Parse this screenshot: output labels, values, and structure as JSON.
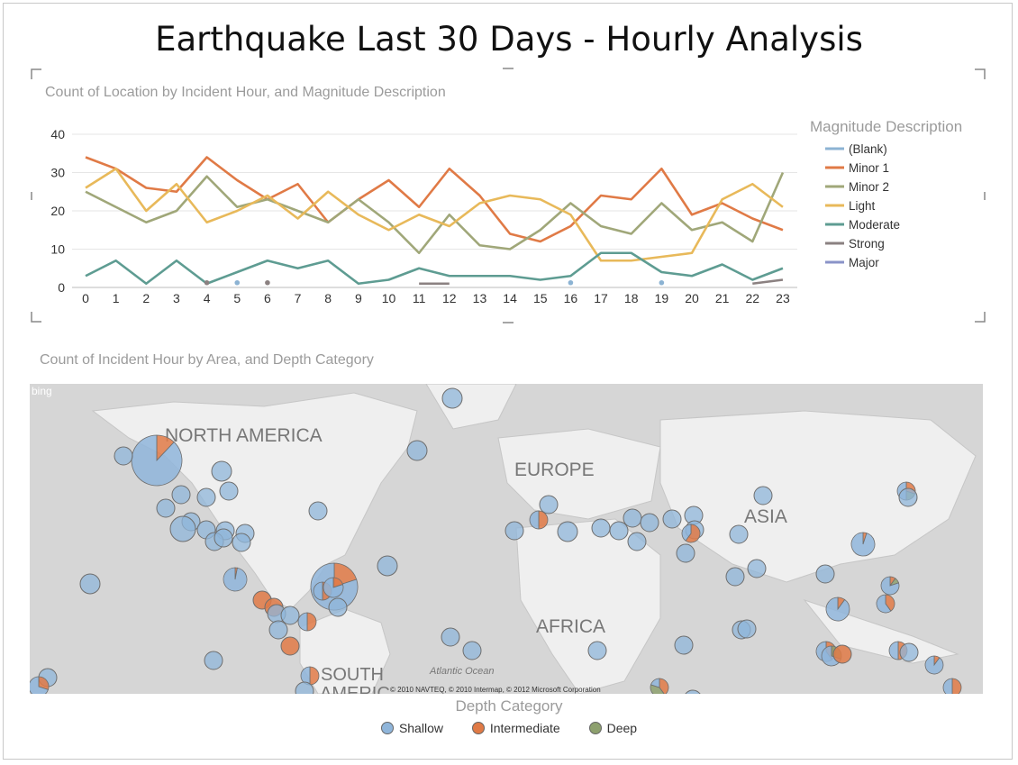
{
  "page": {
    "title": "Earthquake Last 30 Days - Hourly Analysis"
  },
  "colors": {
    "blank": "#8cb3d3",
    "minor1": "#e07a46",
    "minor2": "#a0a779",
    "light": "#e8b95a",
    "moderate": "#5e9c92",
    "strong": "#8b8181",
    "major": "#8a93c8",
    "shallow": "#8fb5da",
    "intermediate": "#e07a46",
    "deep": "#8da06e"
  },
  "chart_data": [
    {
      "type": "line",
      "title": "Count of Location by Incident Hour, and Magnitude Description",
      "xlabel": "",
      "ylabel": "",
      "x": [
        0,
        1,
        2,
        3,
        4,
        5,
        6,
        7,
        8,
        9,
        10,
        11,
        12,
        13,
        14,
        15,
        16,
        17,
        18,
        19,
        20,
        21,
        22,
        23
      ],
      "ylim": [
        0,
        40
      ],
      "yticks": [
        0,
        10,
        20,
        30,
        40
      ],
      "legend_title": "Magnitude Description",
      "legend_position": "right",
      "series": [
        {
          "name": "(Blank)",
          "color_key": "blank",
          "points": [
            [
              5,
              1
            ],
            [
              16,
              1
            ],
            [
              19,
              1
            ]
          ]
        },
        {
          "name": "Minor 1",
          "color_key": "minor1",
          "values": [
            34,
            31,
            26,
            25,
            34,
            28,
            23,
            27,
            17,
            23,
            28,
            21,
            31,
            24,
            14,
            12,
            16,
            24,
            23,
            31,
            19,
            22,
            18,
            15
          ]
        },
        {
          "name": "Minor 2",
          "color_key": "minor2",
          "values": [
            25,
            21,
            17,
            20,
            29,
            21,
            23,
            20,
            17,
            23,
            17,
            9,
            19,
            11,
            10,
            15,
            22,
            16,
            14,
            22,
            15,
            17,
            12,
            30
          ]
        },
        {
          "name": "Light",
          "color_key": "light",
          "values": [
            26,
            31,
            20,
            27,
            17,
            20,
            24,
            18,
            25,
            19,
            15,
            19,
            16,
            22,
            24,
            23,
            19,
            7,
            7,
            8,
            9,
            23,
            27,
            21
          ]
        },
        {
          "name": "Moderate",
          "color_key": "moderate",
          "values": [
            3,
            7,
            1,
            7,
            1,
            4,
            7,
            5,
            7,
            1,
            2,
            5,
            3,
            3,
            3,
            2,
            3,
            9,
            9,
            4,
            3,
            6,
            2,
            5
          ]
        },
        {
          "name": "Strong",
          "color_key": "strong",
          "points": [
            [
              4,
              1
            ],
            [
              6,
              1
            ],
            [
              11,
              1
            ],
            [
              12,
              1
            ],
            [
              22,
              1
            ],
            [
              23,
              2
            ]
          ]
        },
        {
          "name": "Major",
          "color_key": "major",
          "points": []
        }
      ]
    },
    {
      "type": "map-bubble",
      "title": "Count of Incident Hour by Area, and Depth Category",
      "legend_title": "Depth Category",
      "legend": [
        "Shallow",
        "Intermediate",
        "Deep"
      ],
      "labels": {
        "bing": "bing",
        "north_america": "NORTH AMERICA",
        "europe": "EUROPE",
        "asia": "ASIA",
        "africa": "AFRICA",
        "south_america": "SOUTH",
        "south_america_partial": "AMERIC",
        "atlantic": "Atlantic Ocean",
        "copyright": "© 2010 NAVTEQ, © 2010 Intermap, © 2012 Microsoft Corporation"
      }
    }
  ]
}
